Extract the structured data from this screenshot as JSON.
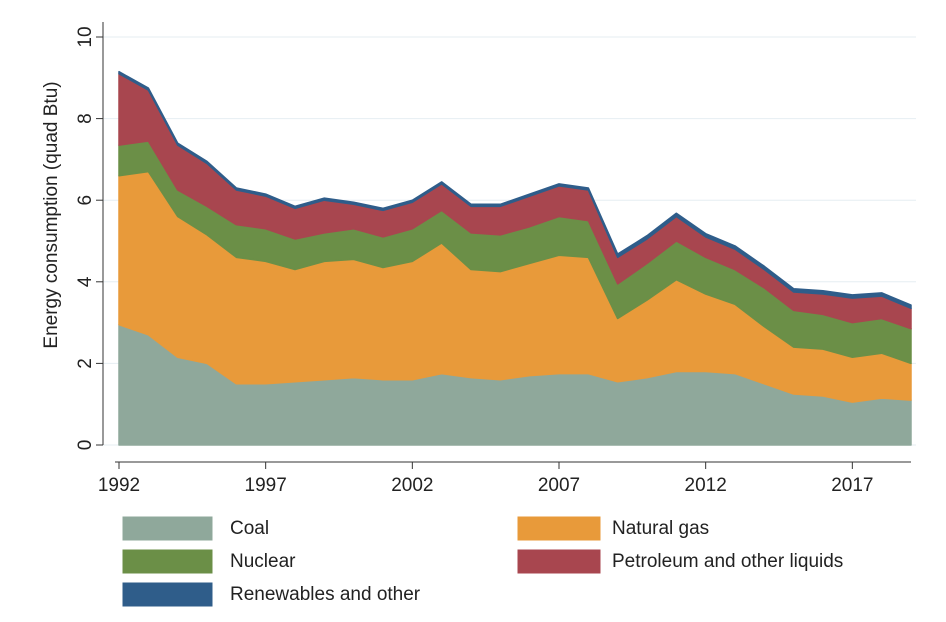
{
  "chart_data": {
    "type": "area",
    "stacked": true,
    "ylabel": "Energy consumption (quad Btu)",
    "x": [
      1992,
      1993,
      1994,
      1995,
      1996,
      1997,
      1998,
      1999,
      2000,
      2001,
      2002,
      2003,
      2004,
      2005,
      2006,
      2007,
      2008,
      2009,
      2010,
      2011,
      2012,
      2013,
      2014,
      2015,
      2016,
      2017,
      2018,
      2019
    ],
    "xlim": [
      1992,
      2019
    ],
    "xticks": [
      1992,
      1997,
      2002,
      2007,
      2012,
      2017
    ],
    "ylim": [
      0,
      10
    ],
    "yticks": [
      0,
      2,
      4,
      6,
      8,
      10
    ],
    "grid": true,
    "legend": "bottom",
    "series": [
      {
        "name": "Coal",
        "color": "#8fa89b",
        "values": [
          2.95,
          2.7,
          2.15,
          2.0,
          1.5,
          1.5,
          1.55,
          1.6,
          1.65,
          1.6,
          1.6,
          1.75,
          1.65,
          1.6,
          1.7,
          1.75,
          1.75,
          1.55,
          1.65,
          1.8,
          1.8,
          1.75,
          1.5,
          1.25,
          1.2,
          1.05,
          1.15,
          1.1
        ]
      },
      {
        "name": "Natural gas",
        "color": "#e89a3a",
        "values": [
          3.65,
          4.0,
          3.45,
          3.15,
          3.1,
          3.0,
          2.75,
          2.9,
          2.9,
          2.75,
          2.9,
          3.2,
          2.65,
          2.65,
          2.75,
          2.9,
          2.85,
          1.55,
          1.9,
          2.25,
          1.9,
          1.7,
          1.4,
          1.15,
          1.15,
          1.1,
          1.1,
          0.9
        ]
      },
      {
        "name": "Nuclear",
        "color": "#6b8f47",
        "values": [
          0.75,
          0.75,
          0.65,
          0.7,
          0.8,
          0.8,
          0.75,
          0.7,
          0.75,
          0.75,
          0.8,
          0.8,
          0.9,
          0.9,
          0.9,
          0.95,
          0.9,
          0.85,
          0.9,
          0.95,
          0.9,
          0.85,
          0.95,
          0.9,
          0.85,
          0.85,
          0.85,
          0.85
        ]
      },
      {
        "name": "Petroleum and other liquids",
        "color": "#a8464f",
        "values": [
          1.75,
          1.25,
          1.1,
          1.05,
          0.85,
          0.8,
          0.75,
          0.8,
          0.6,
          0.65,
          0.65,
          0.65,
          0.65,
          0.7,
          0.75,
          0.75,
          0.75,
          0.65,
          0.6,
          0.6,
          0.5,
          0.5,
          0.45,
          0.45,
          0.5,
          0.6,
          0.55,
          0.5
        ]
      },
      {
        "name": "Renewables and other",
        "color": "#2f5d8a",
        "values": [
          0.05,
          0.05,
          0.05,
          0.05,
          0.05,
          0.05,
          0.05,
          0.05,
          0.05,
          0.05,
          0.05,
          0.05,
          0.05,
          0.05,
          0.05,
          0.05,
          0.05,
          0.08,
          0.08,
          0.08,
          0.08,
          0.08,
          0.08,
          0.08,
          0.08,
          0.08,
          0.08,
          0.08
        ]
      }
    ]
  }
}
